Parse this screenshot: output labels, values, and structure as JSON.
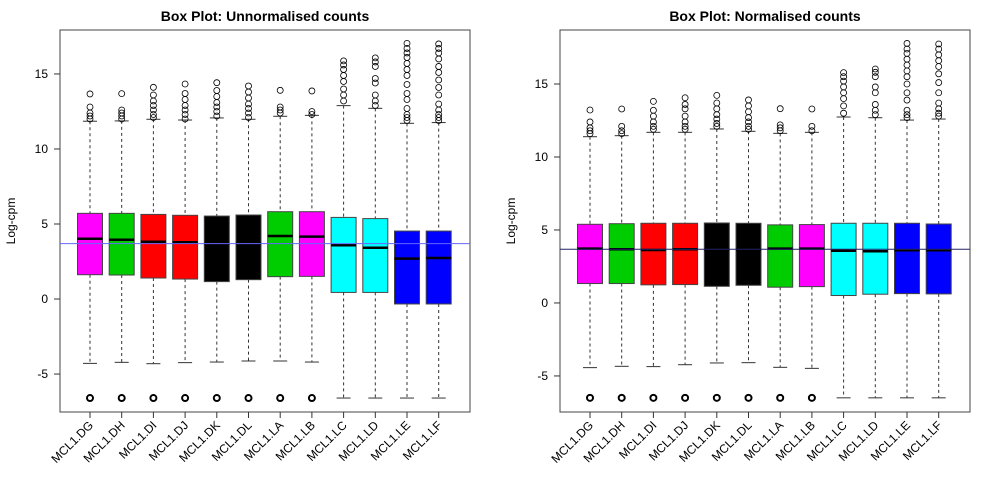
{
  "chart_data": [
    {
      "type": "box",
      "title": "Box Plot: Unnormalised counts",
      "xlabel": "",
      "ylabel": "Log-cpm",
      "ylim": [
        -7.53,
        17.93
      ],
      "yticks": [
        -5,
        0,
        5,
        10,
        15
      ],
      "hline": {
        "value": 3.69,
        "color": "#6666ff"
      },
      "categories": [
        "MCL1.DG",
        "MCL1.DH",
        "MCL1.DI",
        "MCL1.DJ",
        "MCL1.DK",
        "MCL1.DL",
        "MCL1.LA",
        "MCL1.LB",
        "MCL1.LC",
        "MCL1.LD",
        "MCL1.LE",
        "MCL1.LF"
      ],
      "colors": [
        "#ff00ff",
        "#00cd00",
        "#ff0000",
        "#ff0000",
        "#000000",
        "#000000",
        "#00cd00",
        "#ff00ff",
        "#00ffff",
        "#00ffff",
        "#0000ff",
        "#0000ff"
      ],
      "boxes": [
        {
          "whisker_low": -4.29,
          "q1": 1.62,
          "median": 4.02,
          "q3": 5.71,
          "whisker_high": 11.85,
          "outliers": [
            -6.6,
            12.0,
            12.2,
            12.4,
            12.8,
            13.67
          ]
        },
        {
          "whisker_low": -4.22,
          "q1": 1.6,
          "median": 3.95,
          "q3": 5.71,
          "whisker_high": 11.87,
          "outliers": [
            -6.6,
            12.0,
            12.2,
            12.4,
            12.6,
            13.69
          ]
        },
        {
          "whisker_low": -4.31,
          "q1": 1.4,
          "median": 3.82,
          "q3": 5.64,
          "whisker_high": 11.98,
          "outliers": [
            -6.6,
            12.1,
            12.3,
            12.6,
            12.9,
            13.2,
            13.6,
            14.11
          ]
        },
        {
          "whisker_low": -4.24,
          "q1": 1.33,
          "median": 3.78,
          "q3": 5.58,
          "whisker_high": 11.93,
          "outliers": [
            -6.6,
            12.0,
            12.3,
            12.6,
            12.9,
            13.3,
            13.7,
            14.33
          ]
        },
        {
          "whisker_low": -4.2,
          "q1": 1.16,
          "median": 3.67,
          "q3": 5.53,
          "whisker_high": 12.07,
          "outliers": [
            -6.6,
            12.2,
            12.5,
            12.8,
            13.1,
            13.5,
            13.9,
            14.42
          ]
        },
        {
          "whisker_low": -4.13,
          "q1": 1.29,
          "median": 3.7,
          "q3": 5.6,
          "whisker_high": 11.98,
          "outliers": [
            -6.6,
            12.1,
            12.4,
            12.7,
            13.0,
            13.4,
            13.8,
            14.2
          ]
        },
        {
          "whisker_low": -4.13,
          "q1": 1.49,
          "median": 4.2,
          "q3": 5.82,
          "whisker_high": 12.18,
          "outliers": [
            -6.6,
            12.4,
            12.6,
            12.8,
            13.91
          ]
        },
        {
          "whisker_low": -4.2,
          "q1": 1.51,
          "median": 4.16,
          "q3": 5.82,
          "whisker_high": 12.24,
          "outliers": [
            -6.6,
            12.3,
            12.5,
            13.87
          ]
        },
        {
          "whisker_low": -6.6,
          "q1": 0.44,
          "median": 3.58,
          "q3": 5.44,
          "whisker_high": 12.89,
          "outliers": [
            13.2,
            13.6,
            14.0,
            14.5,
            14.9,
            15.3,
            15.6,
            15.87
          ]
        },
        {
          "whisker_low": -6.6,
          "q1": 0.44,
          "median": 3.42,
          "q3": 5.36,
          "whisker_high": 12.71,
          "outliers": [
            12.9,
            13.2,
            13.6,
            14.4,
            14.7,
            15.5,
            15.8,
            16.07
          ]
        },
        {
          "whisker_low": -6.6,
          "q1": -0.33,
          "median": 2.69,
          "q3": 4.53,
          "whisker_high": 11.71,
          "outliers": [
            11.9,
            12.1,
            12.3,
            12.7,
            13.3,
            13.7,
            14.3,
            14.9,
            15.3,
            15.7,
            16.1,
            16.4,
            16.7,
            17.04
          ]
        },
        {
          "whisker_low": -6.6,
          "q1": -0.33,
          "median": 2.73,
          "q3": 4.53,
          "whisker_high": 11.76,
          "outliers": [
            11.9,
            12.1,
            12.3,
            12.6,
            13.0,
            13.6,
            14.1,
            14.6,
            15.1,
            15.5,
            16.0,
            16.4,
            16.7,
            17.0
          ]
        }
      ]
    },
    {
      "type": "box",
      "title": "Box Plot: Normalised counts",
      "xlabel": "",
      "ylabel": "Log-cpm",
      "ylim": [
        -7.47,
        18.7
      ],
      "yticks": [
        -5,
        0,
        5,
        10,
        15
      ],
      "hline": {
        "value": 3.68,
        "color": "#222266"
      },
      "categories": [
        "MCL1.DG",
        "MCL1.DH",
        "MCL1.DI",
        "MCL1.DJ",
        "MCL1.DK",
        "MCL1.DL",
        "MCL1.LA",
        "MCL1.LB",
        "MCL1.LC",
        "MCL1.LD",
        "MCL1.LE",
        "MCL1.LF"
      ],
      "colors": [
        "#ff00ff",
        "#00cd00",
        "#ff0000",
        "#ff0000",
        "#000000",
        "#000000",
        "#00cd00",
        "#ff00ff",
        "#00ffff",
        "#00ffff",
        "#0000ff",
        "#0000ff"
      ],
      "boxes": [
        {
          "whisker_low": -4.43,
          "q1": 1.33,
          "median": 3.72,
          "q3": 5.39,
          "whisker_high": 11.39,
          "outliers": [
            -6.5,
            11.6,
            11.8,
            12.0,
            12.4,
            13.22
          ]
        },
        {
          "whisker_low": -4.34,
          "q1": 1.33,
          "median": 3.68,
          "q3": 5.43,
          "whisker_high": 11.46,
          "outliers": [
            -6.5,
            11.6,
            11.8,
            12.1,
            13.29
          ]
        },
        {
          "whisker_low": -4.36,
          "q1": 1.24,
          "median": 3.63,
          "q3": 5.46,
          "whisker_high": 11.69,
          "outliers": [
            -6.5,
            11.9,
            12.1,
            12.4,
            12.8,
            13.2,
            13.81
          ]
        },
        {
          "whisker_low": -4.23,
          "q1": 1.26,
          "median": 3.68,
          "q3": 5.46,
          "whisker_high": 11.69,
          "outliers": [
            -6.5,
            11.9,
            12.1,
            12.4,
            12.8,
            13.3,
            13.6,
            14.06
          ]
        },
        {
          "whisker_low": -4.11,
          "q1": 1.14,
          "median": 3.65,
          "q3": 5.48,
          "whisker_high": 11.92,
          "outliers": [
            -6.5,
            12.1,
            12.3,
            12.6,
            12.9,
            13.3,
            13.7,
            14.22
          ]
        },
        {
          "whisker_low": -4.09,
          "q1": 1.21,
          "median": 3.65,
          "q3": 5.46,
          "whisker_high": 11.76,
          "outliers": [
            -6.5,
            11.9,
            12.1,
            12.4,
            12.7,
            13.1,
            13.5,
            13.91
          ]
        },
        {
          "whisker_low": -4.41,
          "q1": 1.08,
          "median": 3.72,
          "q3": 5.35,
          "whisker_high": 11.62,
          "outliers": [
            -6.5,
            11.8,
            12.0,
            12.2,
            13.31
          ]
        },
        {
          "whisker_low": -4.48,
          "q1": 1.12,
          "median": 3.72,
          "q3": 5.37,
          "whisker_high": 11.69,
          "outliers": [
            -6.5,
            11.8,
            12.1,
            13.29
          ]
        },
        {
          "whisker_low": -6.5,
          "q1": 0.51,
          "median": 3.58,
          "q3": 5.46,
          "whisker_high": 12.74,
          "outliers": [
            13.0,
            13.5,
            14.0,
            14.4,
            14.8,
            15.2,
            15.5,
            15.78
          ]
        },
        {
          "whisker_low": -6.5,
          "q1": 0.6,
          "median": 3.54,
          "q3": 5.46,
          "whisker_high": 12.69,
          "outliers": [
            12.9,
            13.2,
            13.6,
            14.4,
            14.8,
            15.5,
            15.8,
            16.03
          ]
        },
        {
          "whisker_low": -6.5,
          "q1": 0.64,
          "median": 3.61,
          "q3": 5.46,
          "whisker_high": 12.53,
          "outliers": [
            12.7,
            12.9,
            13.2,
            13.9,
            14.4,
            15.0,
            15.5,
            15.9,
            16.3,
            16.7,
            17.1,
            17.4,
            17.78
          ]
        },
        {
          "whisker_low": -6.5,
          "q1": 0.62,
          "median": 3.61,
          "q3": 5.41,
          "whisker_high": 12.6,
          "outliers": [
            12.8,
            13.0,
            13.3,
            13.7,
            14.4,
            15.1,
            15.7,
            16.2,
            16.6,
            17.0,
            17.4,
            17.74
          ]
        }
      ]
    }
  ]
}
